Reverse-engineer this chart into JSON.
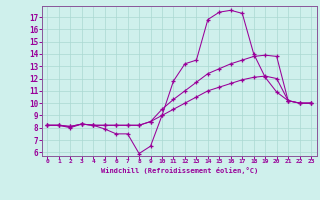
{
  "xlabel": "Windchill (Refroidissement éolien,°C)",
  "bg_color": "#cff0ec",
  "grid_color": "#aad8d2",
  "line_color": "#990099",
  "spine_color": "#885599",
  "xlim": [
    -0.5,
    23.5
  ],
  "ylim": [
    5.7,
    17.9
  ],
  "yticks": [
    6,
    7,
    8,
    9,
    10,
    11,
    12,
    13,
    14,
    15,
    16,
    17
  ],
  "xticks": [
    0,
    1,
    2,
    3,
    4,
    5,
    6,
    7,
    8,
    9,
    10,
    11,
    12,
    13,
    14,
    15,
    16,
    17,
    18,
    19,
    20,
    21,
    22,
    23
  ],
  "series1_x": [
    0,
    1,
    2,
    3,
    4,
    5,
    6,
    7,
    8,
    9,
    10,
    11,
    12,
    13,
    14,
    15,
    16,
    17,
    18,
    19,
    20,
    21,
    22,
    23
  ],
  "series1_y": [
    8.2,
    8.2,
    8.0,
    8.3,
    8.2,
    7.9,
    7.5,
    7.5,
    5.9,
    6.5,
    9.0,
    11.8,
    13.2,
    13.5,
    16.8,
    17.4,
    17.55,
    17.3,
    14.0,
    12.1,
    10.9,
    10.2,
    10.0,
    10.0
  ],
  "series2_x": [
    0,
    1,
    2,
    3,
    4,
    5,
    6,
    7,
    8,
    9,
    10,
    11,
    12,
    13,
    14,
    15,
    16,
    17,
    18,
    19,
    20,
    21,
    22,
    23
  ],
  "series2_y": [
    8.2,
    8.2,
    8.1,
    8.3,
    8.2,
    8.2,
    8.2,
    8.2,
    8.2,
    8.5,
    9.5,
    10.3,
    11.0,
    11.7,
    12.4,
    12.8,
    13.2,
    13.5,
    13.8,
    13.9,
    13.8,
    10.2,
    10.0,
    10.0
  ],
  "series3_x": [
    0,
    1,
    2,
    3,
    4,
    5,
    6,
    7,
    8,
    9,
    10,
    11,
    12,
    13,
    14,
    15,
    16,
    17,
    18,
    19,
    20,
    21,
    22,
    23
  ],
  "series3_y": [
    8.2,
    8.2,
    8.1,
    8.3,
    8.2,
    8.2,
    8.2,
    8.2,
    8.2,
    8.5,
    9.0,
    9.5,
    10.0,
    10.5,
    11.0,
    11.3,
    11.6,
    11.9,
    12.1,
    12.2,
    12.0,
    10.2,
    10.0,
    10.0
  ]
}
